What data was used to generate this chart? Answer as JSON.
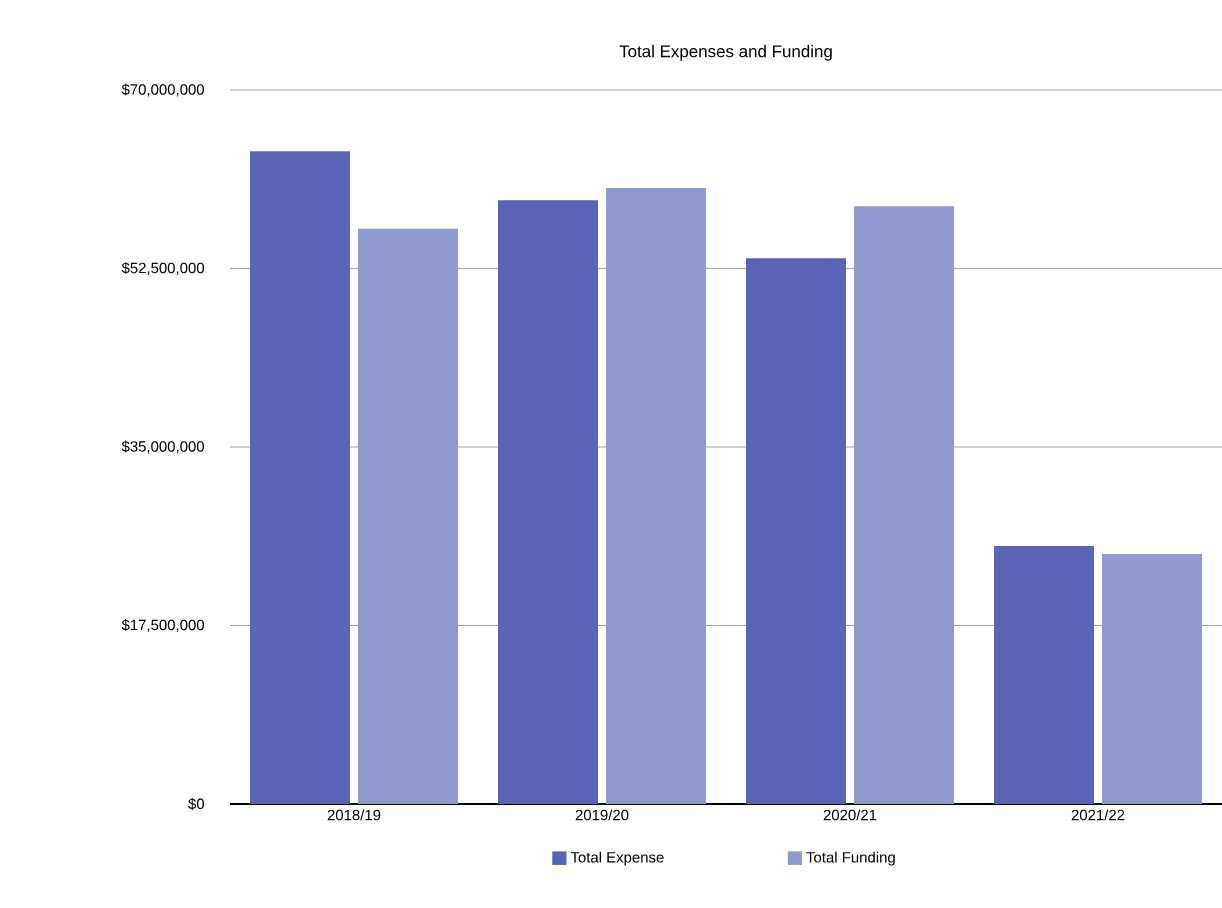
{
  "chart_data": {
    "type": "bar",
    "title": "Total Expenses and Funding",
    "categories": [
      "2018/19",
      "2019/20",
      "2020/21",
      "2021/22"
    ],
    "series": [
      {
        "name": "Total Expense",
        "color": "#5964b6",
        "values": [
          64000000,
          59200000,
          53500000,
          25300000
        ]
      },
      {
        "name": "Total Funding",
        "color": "#8f99cd",
        "values": [
          56400000,
          60400000,
          58600000,
          24500000
        ]
      }
    ],
    "ylim": [
      0,
      70000000
    ],
    "yticks": [
      {
        "value": 0,
        "label": "$0"
      },
      {
        "value": 17500000,
        "label": "$17,500,000"
      },
      {
        "value": 35000000,
        "label": "$35,000,000"
      },
      {
        "value": 52500000,
        "label": "$52,500,000"
      },
      {
        "value": 70000000,
        "label": "$70,000,000"
      }
    ],
    "grid": "y",
    "legend": "bottom"
  }
}
